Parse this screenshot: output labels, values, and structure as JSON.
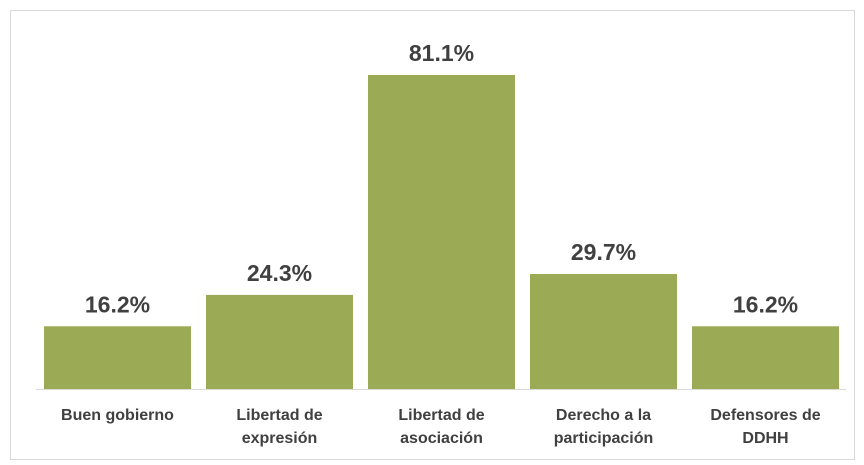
{
  "chart_data": {
    "type": "bar",
    "categories": [
      "Buen gobierno",
      "Libertad de expresión",
      "Libertad de asociación",
      "Derecho a la participación",
      "Defensores de DDHH"
    ],
    "values": [
      16.2,
      24.3,
      81.1,
      29.7,
      16.2
    ],
    "value_labels": [
      "16.2%",
      "24.3%",
      "81.1%",
      "29.7%",
      "16.2%"
    ],
    "color": "#9bab55"
  }
}
